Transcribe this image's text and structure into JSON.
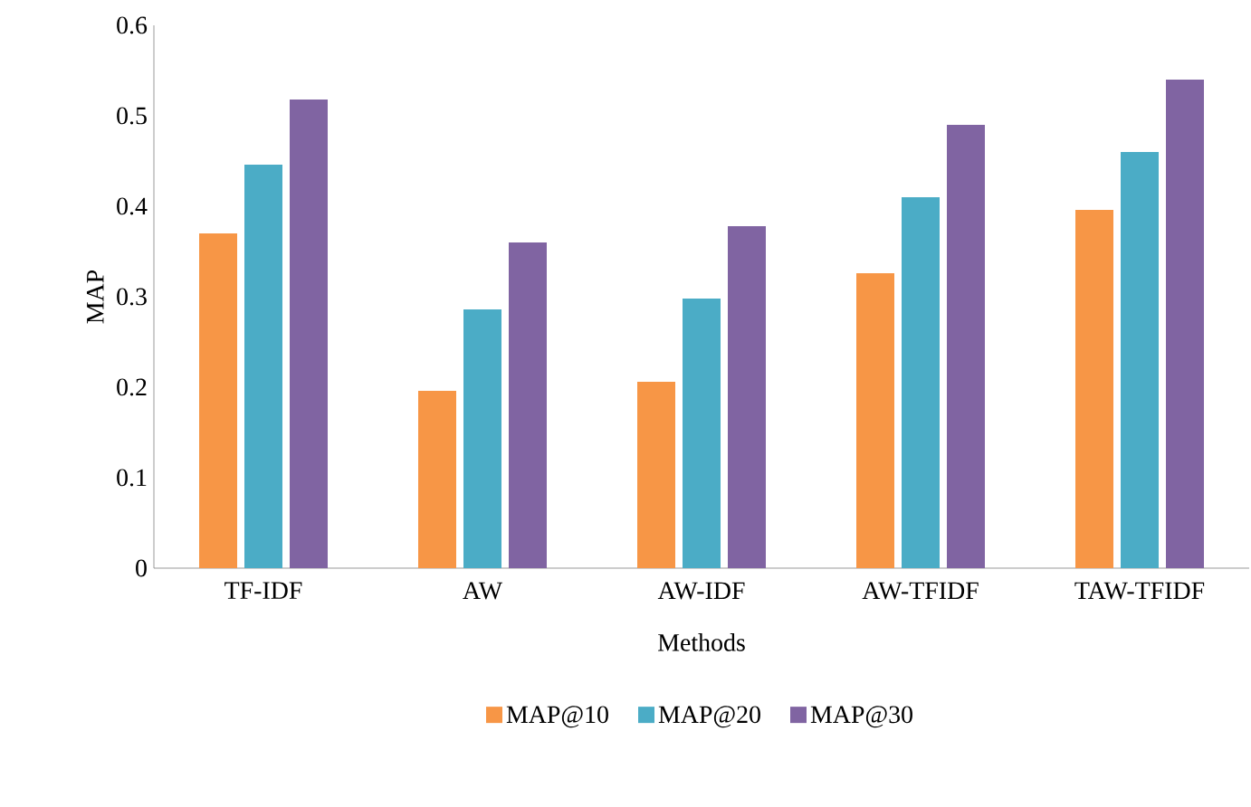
{
  "chart_data": {
    "type": "bar",
    "ylabel": "MAP",
    "xlabel": "Methods",
    "categories": [
      "TF-IDF",
      "AW",
      "AW-IDF",
      "AW-TFIDF",
      "TAW-TFIDF"
    ],
    "series": [
      {
        "name": "MAP@10",
        "color": "#f79646",
        "values": [
          0.37,
          0.196,
          0.206,
          0.326,
          0.396
        ]
      },
      {
        "name": "MAP@20",
        "color": "#4bacc6",
        "values": [
          0.446,
          0.286,
          0.298,
          0.41,
          0.46
        ]
      },
      {
        "name": "MAP@30",
        "color": "#8064a2",
        "values": [
          0.518,
          0.36,
          0.378,
          0.49,
          0.54
        ]
      }
    ],
    "ylim": [
      0,
      0.6
    ],
    "yticks": [
      0,
      0.1,
      0.2,
      0.3,
      0.4,
      0.5,
      0.6
    ],
    "grid": false,
    "legend": "bottom"
  }
}
